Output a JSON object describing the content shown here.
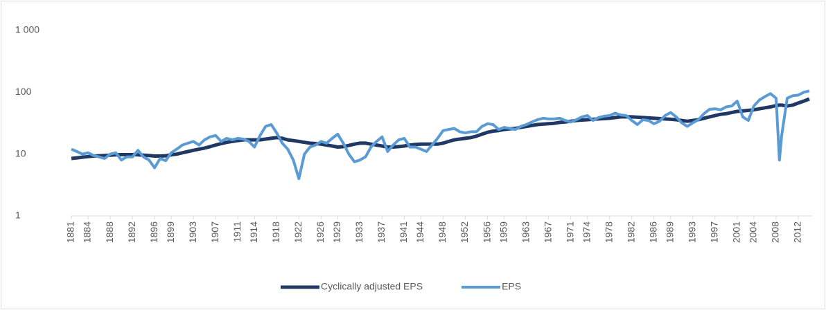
{
  "chart_data": {
    "type": "line",
    "log_scale": true,
    "grid": false,
    "legend": "bottom",
    "x": [
      1881,
      1882,
      1883,
      1884,
      1885,
      1886,
      1887,
      1888,
      1889,
      1890,
      1891,
      1892,
      1893,
      1894,
      1895,
      1896,
      1897,
      1898,
      1899,
      1900,
      1901,
      1902,
      1903,
      1904,
      1905,
      1906,
      1907,
      1908,
      1909,
      1910,
      1911,
      1912,
      1913,
      1914,
      1915,
      1916,
      1917,
      1918,
      1919,
      1920,
      1921,
      1922,
      1923,
      1924,
      1925,
      1926,
      1927,
      1928,
      1929,
      1930,
      1931,
      1932,
      1933,
      1934,
      1935,
      1936,
      1937,
      1938,
      1939,
      1940,
      1941,
      1942,
      1943,
      1944,
      1945,
      1946,
      1947,
      1948,
      1949,
      1950,
      1951,
      1952,
      1953,
      1954,
      1955,
      1956,
      1957,
      1958,
      1959,
      1960,
      1961,
      1962,
      1963,
      1964,
      1965,
      1966,
      1967,
      1968,
      1969,
      1970,
      1971,
      1972,
      1973,
      1974,
      1975,
      1976,
      1977,
      1978,
      1979,
      1980,
      1981,
      1982,
      1983,
      1984,
      1985,
      1986,
      1987,
      1988,
      1989,
      1990,
      1991,
      1992,
      1993,
      1994,
      1995,
      1996,
      1997,
      1998,
      1999,
      2000,
      2001,
      2002,
      2003,
      2004,
      2005,
      2006,
      2007,
      2008,
      2008.6,
      2009,
      2010,
      2011,
      2012,
      2013,
      2014
    ],
    "series": [
      {
        "name": "Cyclically adjusted EPS",
        "color": "#1f3864",
        "width": 5,
        "values": [
          8.5,
          8.7,
          8.9,
          9.1,
          9.3,
          9.4,
          9.5,
          9.6,
          9.7,
          9.8,
          9.8,
          9.8,
          9.7,
          9.6,
          9.5,
          9.3,
          9.3,
          9.4,
          9.7,
          10,
          10.5,
          11,
          11.5,
          12,
          12.5,
          13.2,
          14,
          14.8,
          15.5,
          16,
          16.5,
          17,
          17,
          17,
          17,
          17.5,
          18,
          18.5,
          18,
          17,
          16.5,
          16,
          15.5,
          15,
          14.8,
          14.5,
          14,
          13.5,
          13,
          13.2,
          13.8,
          14.5,
          15,
          15,
          14.5,
          14,
          13.5,
          13,
          13,
          13.2,
          13.5,
          14,
          14.3,
          14.5,
          14.5,
          14.5,
          14.5,
          15,
          16,
          17,
          17.5,
          18,
          18.5,
          19.5,
          21,
          22.5,
          23.5,
          24,
          25,
          25.5,
          26,
          27,
          28,
          29,
          30,
          30.5,
          31,
          31.5,
          32.5,
          33,
          34,
          35,
          35.5,
          36,
          36.5,
          37,
          37.5,
          38,
          39,
          40,
          40,
          40,
          39.5,
          39,
          38.5,
          38,
          37.5,
          37,
          36.5,
          36,
          35,
          34,
          35,
          36,
          38,
          40,
          42,
          44,
          45,
          47,
          49,
          50,
          51,
          52,
          54,
          56,
          58,
          61,
          62,
          62,
          60,
          62,
          67,
          72,
          78
        ]
      },
      {
        "name": "EPS",
        "color": "#5b9bd5",
        "width": 4,
        "values": [
          12,
          11,
          10,
          10.5,
          9.5,
          9,
          8.5,
          10,
          10.5,
          8,
          9,
          9,
          11.5,
          9,
          8,
          6,
          8.5,
          7.8,
          10.5,
          12,
          14,
          15,
          16,
          14,
          17,
          19,
          20,
          16,
          18,
          17,
          18,
          17.5,
          16,
          13,
          20,
          28,
          30,
          22,
          15,
          12,
          8,
          4,
          10,
          13,
          14,
          16,
          15,
          18,
          21,
          15,
          10,
          7.5,
          8,
          9,
          13,
          16,
          19,
          11,
          14,
          17,
          18,
          13,
          13,
          12,
          11,
          14,
          18,
          24,
          25,
          26,
          23,
          22,
          23,
          23,
          28,
          31,
          30,
          25,
          27,
          26,
          25,
          28,
          30,
          33,
          36,
          38,
          37,
          37,
          38,
          35,
          33,
          36,
          40,
          42,
          35,
          39,
          41,
          42,
          46,
          43,
          42,
          35,
          30,
          36,
          35,
          31,
          34,
          42,
          47,
          40,
          32,
          28,
          32,
          36,
          45,
          53,
          54,
          52,
          58,
          60,
          72,
          40,
          35,
          60,
          75,
          85,
          95,
          80,
          8,
          20,
          80,
          88,
          90,
          100,
          105
        ]
      }
    ],
    "xlim": [
      1881,
      2014.5
    ],
    "xticks": [
      1881,
      1884,
      1888,
      1892,
      1896,
      1899,
      1903,
      1907,
      1911,
      1914,
      1918,
      1922,
      1926,
      1929,
      1933,
      1937,
      1941,
      1944,
      1948,
      1952,
      1956,
      1959,
      1963,
      1967,
      1971,
      1974,
      1978,
      1982,
      1986,
      1989,
      1993,
      1997,
      2001,
      2004,
      2008,
      2012
    ],
    "ylim": [
      1,
      1000
    ],
    "yticks": [
      1,
      10,
      100,
      {
        "value": 1000,
        "label": "1 000"
      }
    ]
  }
}
